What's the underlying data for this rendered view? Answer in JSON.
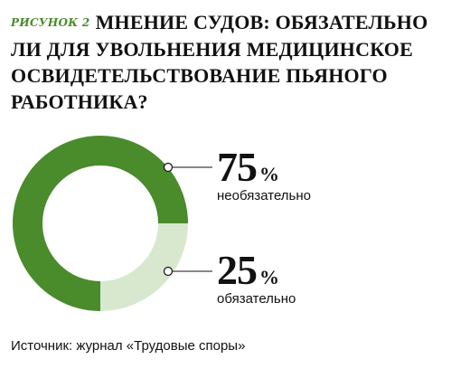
{
  "figure_label": "РИСУНОК 2",
  "title_lines": [
    "МНЕНИЕ СУДОВ: ОБЯЗАТЕЛЬНО",
    "ЛИ ДЛЯ УВОЛЬНЕНИЯ МЕДИЦИНСКОЕ",
    "ОСВИДЕТЕЛЬСТВОВАНИЕ ПЬЯНОГО",
    "РАБОТНИКА?"
  ],
  "source": "Источник: журнал «Трудовые споры»",
  "colors": {
    "primary": "#4a8b2c",
    "secondary": "#d8e8ce",
    "text": "#111111"
  },
  "chart_data": {
    "type": "pie",
    "style": "donut",
    "unit": "%",
    "slices": [
      {
        "label": "необязательно",
        "value": 75,
        "color": "#4a8b2c"
      },
      {
        "label": "обязательно",
        "value": 25,
        "color": "#d8e8ce"
      }
    ]
  }
}
